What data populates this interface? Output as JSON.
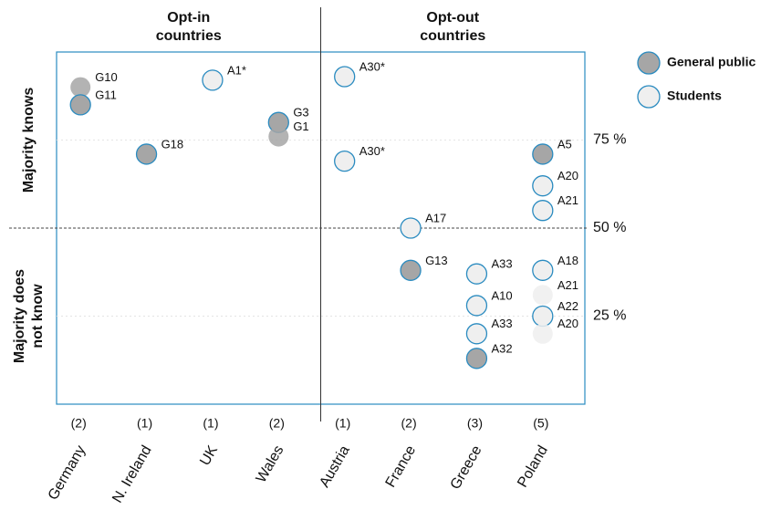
{
  "chart_data": {
    "type": "scatter",
    "groups": [
      {
        "lines": [
          "Opt-in",
          "countries"
        ],
        "categories": [
          0,
          3
        ]
      },
      {
        "lines": [
          "Opt-out",
          "countries"
        ],
        "categories": [
          4,
          7
        ]
      }
    ],
    "y_labels": [
      {
        "lines": [
          "Majority knows"
        ],
        "range": [
          50,
          100
        ]
      },
      {
        "lines": [
          "Majority does",
          "not know"
        ],
        "range": [
          0,
          50
        ]
      }
    ],
    "categories": [
      "Germany",
      "N. Ireland",
      "UK",
      "Wales",
      "Austria",
      "France",
      "Greece",
      "Poland"
    ],
    "counts": [
      "(2)",
      "(1)",
      "(1)",
      "(2)",
      "(1)",
      "(2)",
      "(3)",
      "(5)"
    ],
    "ylim": [
      0,
      100
    ],
    "yticks": [
      {
        "value": 25,
        "label": "25 %"
      },
      {
        "value": 50,
        "label": "50 %"
      },
      {
        "value": 75,
        "label": "75 %"
      }
    ],
    "reference_line": 50,
    "outline_color": "#2a8bc0",
    "series": [
      {
        "name": "General public",
        "color": "#a6a6a6",
        "x": [
          "Germany",
          "Germany",
          "N. Ireland",
          "Wales",
          "Wales",
          "France",
          "Greece",
          "Poland"
        ],
        "values": [
          90,
          85,
          71,
          80,
          76,
          38,
          13,
          71
        ],
        "labels": [
          "G10",
          "G11",
          "G18",
          "G3",
          "G1",
          "G13",
          "A32",
          "A5"
        ],
        "outline": [
          false,
          true,
          true,
          true,
          false,
          true,
          true,
          true
        ]
      },
      {
        "name": "Students",
        "color": "#efefef",
        "x": [
          "UK",
          "Austria",
          "Austria",
          "France",
          "Greece",
          "Greece",
          "Greece",
          "Poland",
          "Poland",
          "Poland",
          "Poland",
          "Poland",
          "Poland"
        ],
        "values": [
          92,
          93,
          69,
          50,
          37,
          28,
          20,
          62,
          55,
          38,
          31,
          25,
          20
        ],
        "labels": [
          "A1*",
          "A30*",
          "A30*",
          "A17",
          "A33",
          "A10",
          "A33",
          "A20",
          "A21",
          "A18",
          "A21",
          "A22",
          "A20"
        ],
        "outline": [
          true,
          true,
          true,
          true,
          true,
          true,
          true,
          true,
          true,
          true,
          false,
          true,
          false
        ]
      }
    ]
  }
}
